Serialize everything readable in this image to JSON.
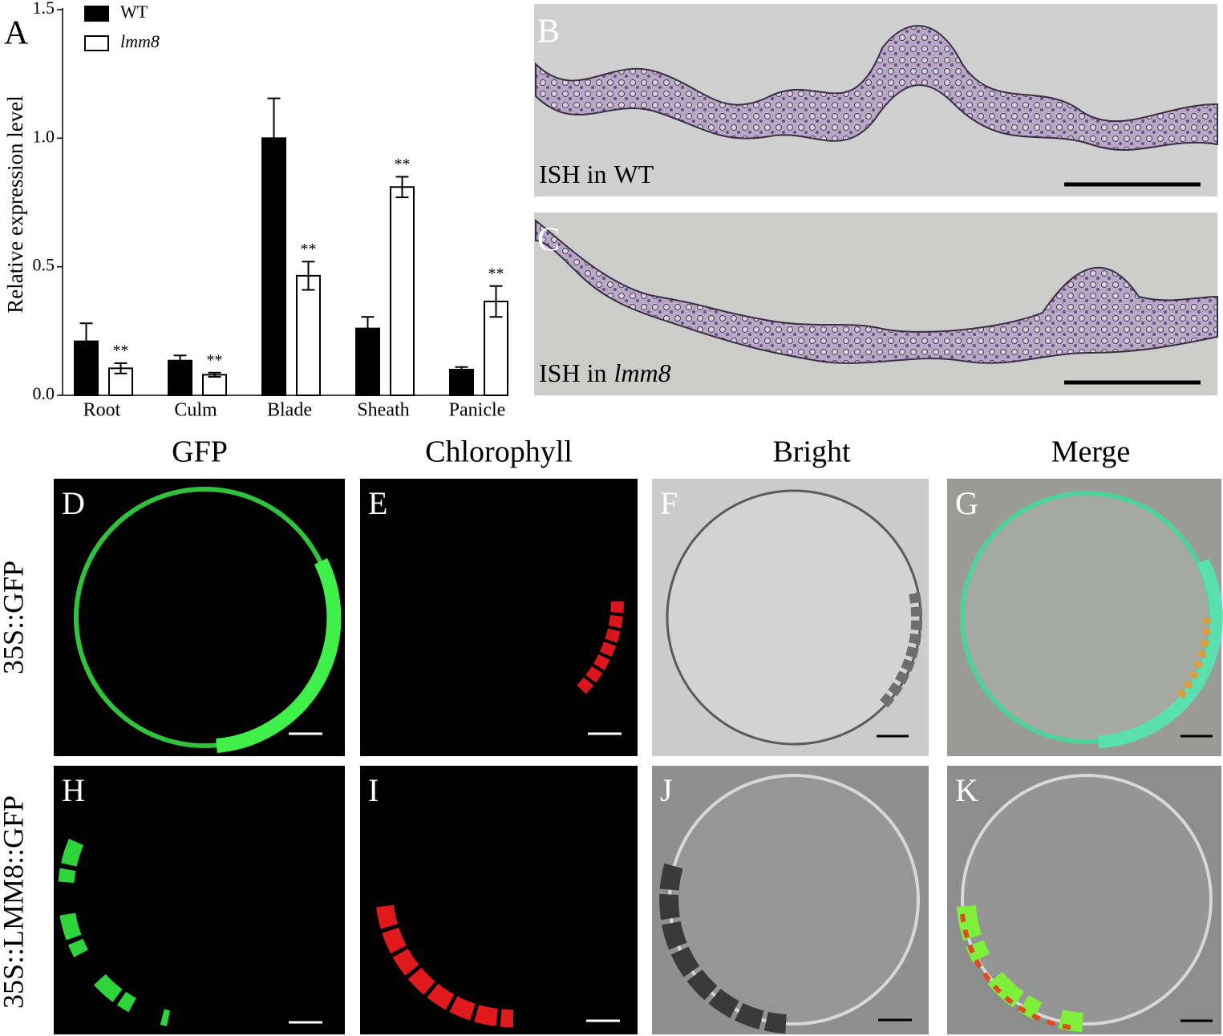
{
  "chart_data": {
    "type": "bar",
    "panel_label": "A",
    "ylabel": "Relative expression level",
    "categories": [
      "Root",
      "Culm",
      "Blade",
      "Sheath",
      "Panicle"
    ],
    "series": [
      {
        "name": "WT",
        "color": "#000000",
        "values": [
          0.21,
          0.135,
          1.0,
          0.26,
          0.1
        ],
        "errors": [
          0.07,
          0.02,
          0.155,
          0.045,
          0.01
        ]
      },
      {
        "name": "lmm8",
        "color": "#ffffff",
        "values": [
          0.105,
          0.08,
          0.465,
          0.81,
          0.365
        ],
        "errors": [
          0.02,
          0.008,
          0.055,
          0.04,
          0.06
        ]
      }
    ],
    "annotations": [
      "**",
      "**",
      "**",
      "**",
      "**"
    ],
    "ylim": [
      0,
      1.5
    ],
    "yticks": [
      {
        "value": 0,
        "label": "0.0"
      },
      {
        "value": 0.5,
        "label": "0.5"
      },
      {
        "value": 1,
        "label": "1.0"
      },
      {
        "value": 1.5,
        "label": "1.5"
      }
    ]
  },
  "ish_panels": [
    {
      "label": "B",
      "caption": "ISH in",
      "genotype": "WT"
    },
    {
      "label": "C",
      "caption": "ISH in",
      "genotype": "lmm8"
    }
  ],
  "columns": [
    "GFP",
    "Chlorophyll",
    "Bright",
    "Merge"
  ],
  "rows": [
    {
      "label": "35S::GFP",
      "panels": [
        "D",
        "E",
        "F",
        "G"
      ]
    },
    {
      "label": "35S::LMM8::GFP",
      "panels": [
        "H",
        "I",
        "J",
        "K"
      ]
    }
  ]
}
